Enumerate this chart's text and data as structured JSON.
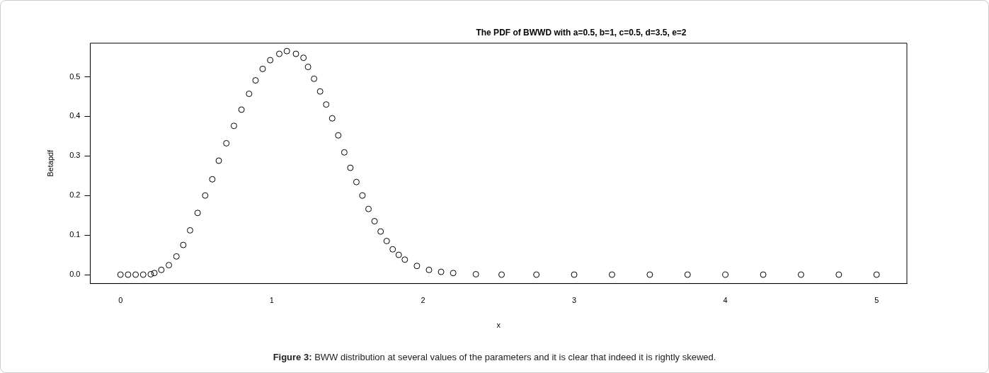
{
  "chart_data": {
    "type": "scatter",
    "title": "The PDF of BWWD with a=0.5, b=1, c=0.5, d=3.5, e=2",
    "xlabel": "x",
    "ylabel": "Betapdf",
    "annotations": [
      "Figure 3: BWW distribution at several values of the parameters and it is clear that indeed it is rightly skewed."
    ],
    "series": [
      {
        "color": "#000000",
        "x": [
          0,
          0.05,
          0.1,
          0.15,
          0.2,
          0.224,
          0.27,
          0.32,
          0.37,
          0.415,
          0.46,
          0.51,
          0.56,
          0.607,
          0.65,
          0.7,
          0.75,
          0.8,
          0.85,
          0.893,
          0.94,
          0.99,
          1.05,
          1.1,
          1.16,
          1.21,
          1.24,
          1.28,
          1.32,
          1.36,
          1.4,
          1.44,
          1.48,
          1.52,
          1.56,
          1.6,
          1.64,
          1.68,
          1.72,
          1.76,
          1.8,
          1.84,
          1.88,
          1.96,
          2.04,
          2.12,
          2.2,
          2.35,
          2.52,
          2.75,
          3,
          3.25,
          3.5,
          3.75,
          4,
          4.25,
          4.5,
          4.75,
          5
        ],
        "values": [
          0,
          0,
          0,
          0,
          0.001,
          0.004,
          0.012,
          0.024,
          0.046,
          0.075,
          0.112,
          0.156,
          0.2,
          0.241,
          0.288,
          0.332,
          0.376,
          0.417,
          0.457,
          0.491,
          0.52,
          0.542,
          0.558,
          0.565,
          0.558,
          0.548,
          0.525,
          0.495,
          0.463,
          0.43,
          0.395,
          0.352,
          0.309,
          0.27,
          0.234,
          0.2,
          0.166,
          0.135,
          0.109,
          0.085,
          0.064,
          0.05,
          0.038,
          0.022,
          0.012,
          0.007,
          0.004,
          0.001,
          0,
          0,
          0,
          0,
          0,
          0,
          0,
          0,
          0,
          0,
          0
        ]
      }
    ],
    "xlim": [
      -0.2,
      5.2
    ],
    "xticks": [
      0,
      1,
      2,
      3,
      4,
      5
    ],
    "ylim": [
      -0.0225,
      0.585
    ],
    "yticks": [
      {
        "value": 0,
        "label": "0.0"
      },
      0.1,
      0.2,
      0.3,
      0.4,
      0.5
    ],
    "grid": false,
    "legend": false,
    "marker": "circle"
  }
}
